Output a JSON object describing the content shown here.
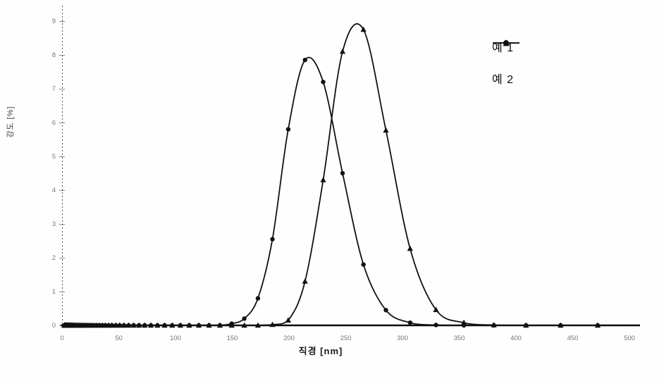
{
  "chart_data": {
    "type": "line",
    "title": "",
    "xlabel": "직경 [nm]",
    "ylabel": "강도 [%]",
    "xlim": [
      0,
      500
    ],
    "ylim": [
      0,
      9.4
    ],
    "x_ticks": [
      0,
      50,
      100,
      150,
      200,
      250,
      300,
      350,
      400,
      450,
      500
    ],
    "y_ticks": [
      0,
      1,
      2,
      3,
      4,
      5,
      6,
      7,
      8,
      9
    ],
    "grid": false,
    "legend_position": "upper right",
    "line_color": "#111111",
    "x": [
      2.0,
      2.15,
      2.31,
      2.48,
      2.67,
      2.86,
      3.08,
      3.31,
      3.55,
      3.82,
      4.1,
      4.41,
      4.74,
      5.09,
      5.47,
      5.88,
      6.31,
      6.78,
      7.29,
      7.83,
      8.42,
      9.04,
      9.72,
      10.4,
      11.2,
      12.1,
      13.0,
      13.9,
      15.0,
      16.1,
      17.3,
      18.6,
      20.0,
      21.4,
      23.0,
      24.8,
      26.6,
      28.6,
      30.7,
      33.0,
      35.5,
      38.1,
      41.0,
      44.0,
      47.3,
      50.8,
      54.6,
      58.7,
      63.1,
      67.8,
      72.8,
      78.3,
      84.1,
      90.4,
      97.1,
      104.3,
      112.1,
      120.5,
      129.5,
      139.1,
      149.5,
      160.6,
      172.6,
      185.4,
      199.3,
      214.1,
      230.1,
      247.2,
      265.6,
      285.4,
      306.7,
      329.5,
      354.1,
      380.5,
      408.8,
      439.3,
      472.0
    ],
    "series": [
      {
        "name": "예 1",
        "marker": "triangle",
        "values": [
          0,
          0,
          0,
          0,
          0,
          0,
          0,
          0,
          0,
          0,
          0,
          0,
          0,
          0,
          0,
          0,
          0,
          0,
          0,
          0,
          0,
          0,
          0,
          0,
          0,
          0,
          0,
          0,
          0,
          0,
          0,
          0,
          0,
          0,
          0,
          0,
          0,
          0,
          0,
          0,
          0,
          0,
          0,
          0,
          0,
          0,
          0,
          0,
          0,
          0,
          0,
          0,
          0,
          0,
          0,
          0,
          0,
          0,
          0,
          0,
          0,
          0,
          0,
          0.02,
          0.15,
          1.3,
          4.3,
          8.1,
          8.75,
          5.77,
          2.27,
          0.46,
          0.08,
          0.01,
          0,
          0,
          0
        ]
      },
      {
        "name": "예 2",
        "marker": "circle",
        "values": [
          0,
          0,
          0,
          0,
          0,
          0,
          0,
          0,
          0,
          0,
          0,
          0,
          0,
          0,
          0,
          0,
          0,
          0,
          0,
          0,
          0,
          0,
          0,
          0,
          0,
          0,
          0,
          0,
          0,
          0,
          0,
          0,
          0,
          0,
          0,
          0,
          0,
          0,
          0,
          0,
          0,
          0,
          0,
          0,
          0,
          0,
          0,
          0,
          0,
          0,
          0,
          0,
          0,
          0,
          0,
          0,
          0,
          0,
          0,
          0,
          0.05,
          0.2,
          0.8,
          2.55,
          5.8,
          7.85,
          7.2,
          4.5,
          1.8,
          0.45,
          0.08,
          0.01,
          0,
          0,
          0,
          0,
          0
        ]
      }
    ]
  }
}
